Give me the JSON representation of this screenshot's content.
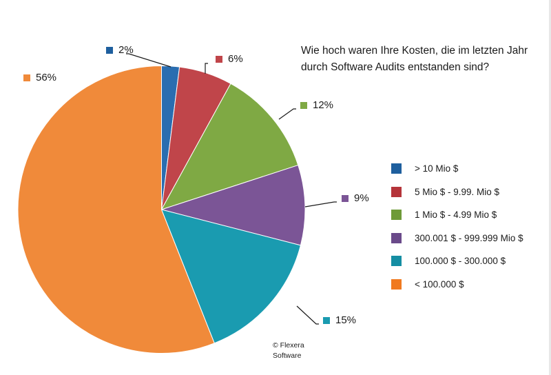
{
  "chart_data": {
    "type": "pie",
    "title": "Wie hoch waren Ihre Kosten, die im letzten Jahr durch Software Audits entstanden sind?",
    "categories": [
      "> 10 Mio $",
      "5 Mio $ - 9.99. Mio $",
      "1 Mio $ - 4.99 Mio $",
      "300.001 $ - 999.999 Mio $",
      "100.000 $ - 300.000 $",
      "< 100.000 $"
    ],
    "values": [
      2,
      6,
      12,
      9,
      15,
      56
    ],
    "unit": "%",
    "colors": [
      "#2a6db0",
      "#c0454a",
      "#7fa944",
      "#7b5596",
      "#1a9bb0",
      "#f08a3a"
    ],
    "start_angle_deg": 0,
    "direction": "clockwise",
    "legend_position": "right",
    "data_labels": [
      "2%",
      "6%",
      "12%",
      "9%",
      "15%",
      "56%"
    ],
    "annotation": "© Flexera Software"
  },
  "title": {
    "line1": "Wie hoch waren Ihre Kosten, die im letzten Jahr",
    "line2": "durch Software Audits entstanden sind?"
  },
  "legend": {
    "items": [
      {
        "label": "> 10 Mio $",
        "color": "#1e5f9e"
      },
      {
        "label": "5 Mio $ - 9.99. Mio $",
        "color": "#b5343a"
      },
      {
        "label": "1 Mio $ - 4.99 Mio $",
        "color": "#6e9a38"
      },
      {
        "label": "300.001 $ - 999.999 Mio $",
        "color": "#6a4a8a"
      },
      {
        "label": "100.000 $ - 300.000 $",
        "color": "#158ea3"
      },
      {
        "label": "< 100.000 $",
        "color": "#f07a20"
      }
    ]
  },
  "labels": {
    "l0": "2%",
    "l1": "6%",
    "l2": "12%",
    "l3": "9%",
    "l4": "15%",
    "l5": "56%"
  },
  "copyright": {
    "line1": "© Flexera",
    "line2": "Software"
  }
}
